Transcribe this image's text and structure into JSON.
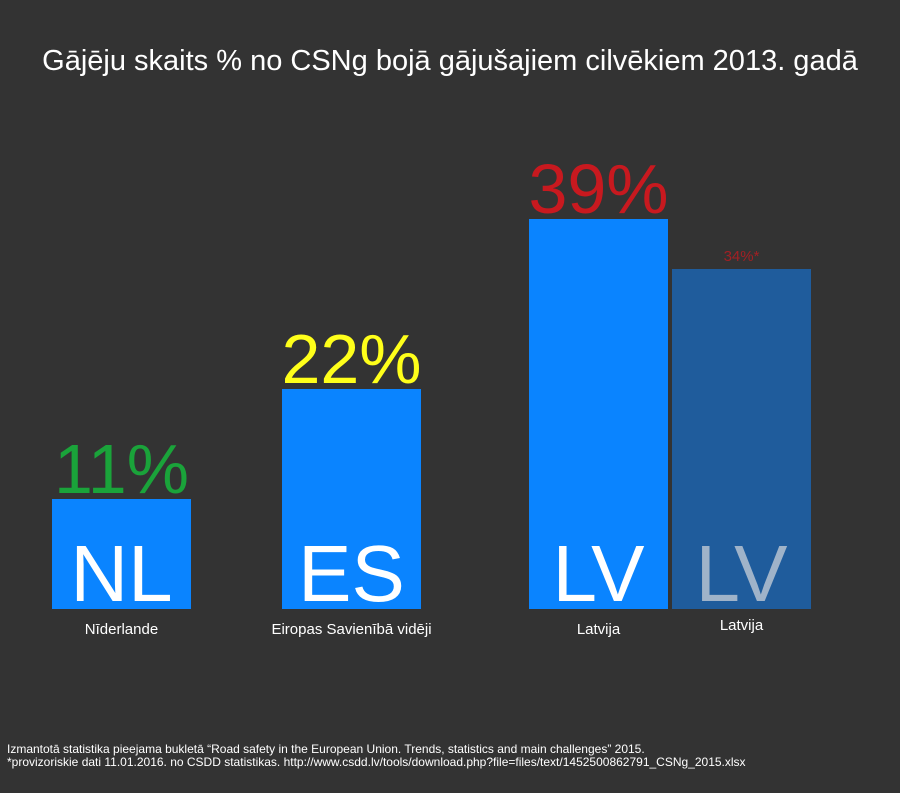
{
  "title": "Gājēju skaits % no CSNg bojā gājušajiem cilvēkiem 2013. gadā",
  "chart_data": {
    "type": "bar",
    "ylim": [
      0,
      45
    ],
    "bars": [
      {
        "code": "NL",
        "label": "Nīderlande",
        "value": 11,
        "value_label": "11%",
        "bar_color": "#0a84ff",
        "code_color": "#ffffff",
        "value_color": "#1aa33a"
      },
      {
        "code": "ES",
        "label": "Eiropas Savienībā vidēji",
        "value": 22,
        "value_label": "22%",
        "bar_color": "#0a84ff",
        "code_color": "#ffffff",
        "value_color": "#ffff1a"
      },
      {
        "code": "LV",
        "label": "Latvija",
        "value": 39,
        "value_label": "39%",
        "bar_color": "#0a84ff",
        "code_color": "#ffffff",
        "value_color": "#c8191f"
      },
      {
        "code": "LV",
        "label": "Latvija",
        "value": 34,
        "value_label": "34%*",
        "bar_color": "#1f5c9c",
        "code_color": "#9fb3c9",
        "value_color": "#a12024"
      }
    ]
  },
  "footnotes": [
    "Izmantotā statistika pieejama bukletā “Road safety in the European Union. Trends, statistics and main challenges” 2015.",
    "*provizoriskie dati 11.01.2016. no CSDD statistikas. http://www.csdd.lv/tools/download.php?file=files/text/1452500862791_CSNg_2015.xlsx"
  ]
}
